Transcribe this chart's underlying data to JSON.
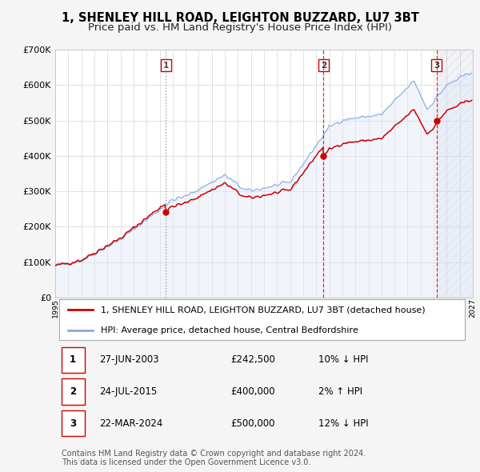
{
  "title": "1, SHENLEY HILL ROAD, LEIGHTON BUZZARD, LU7 3BT",
  "subtitle": "Price paid vs. HM Land Registry's House Price Index (HPI)",
  "xlim": [
    1995,
    2027
  ],
  "ylim": [
    0,
    700000
  ],
  "yticks": [
    0,
    100000,
    200000,
    300000,
    400000,
    500000,
    600000,
    700000
  ],
  "ytick_labels": [
    "£0",
    "£100K",
    "£200K",
    "£300K",
    "£400K",
    "£500K",
    "£600K",
    "£700K"
  ],
  "sale_color": "#cc0000",
  "hpi_color": "#88aadd",
  "hpi_fill_color": "#dde8f5",
  "background_color": "#f5f5f5",
  "plot_bg_color": "#ffffff",
  "sale_dates": [
    2003.49,
    2015.56,
    2024.22
  ],
  "sale_prices": [
    242500,
    400000,
    500000
  ],
  "sale_labels": [
    "1",
    "2",
    "3"
  ],
  "vline1_style": "dotted",
  "vline1_color": "#888888",
  "vline23_style": "dashed",
  "vline23_color": "#cc0000",
  "legend_sale": "1, SHENLEY HILL ROAD, LEIGHTON BUZZARD, LU7 3BT (detached house)",
  "legend_hpi": "HPI: Average price, detached house, Central Bedfordshire",
  "table_data": [
    [
      "1",
      "27-JUN-2003",
      "£242,500",
      "10% ↓ HPI"
    ],
    [
      "2",
      "24-JUL-2015",
      "£400,000",
      "2% ↑ HPI"
    ],
    [
      "3",
      "22-MAR-2024",
      "£500,000",
      "12% ↓ HPI"
    ]
  ],
  "footnote": "Contains HM Land Registry data © Crown copyright and database right 2024.\nThis data is licensed under the Open Government Licence v3.0.",
  "title_fontsize": 10.5,
  "subtitle_fontsize": 9.5,
  "axis_fontsize": 8,
  "legend_fontsize": 8,
  "table_fontsize": 8.5,
  "footnote_fontsize": 7
}
